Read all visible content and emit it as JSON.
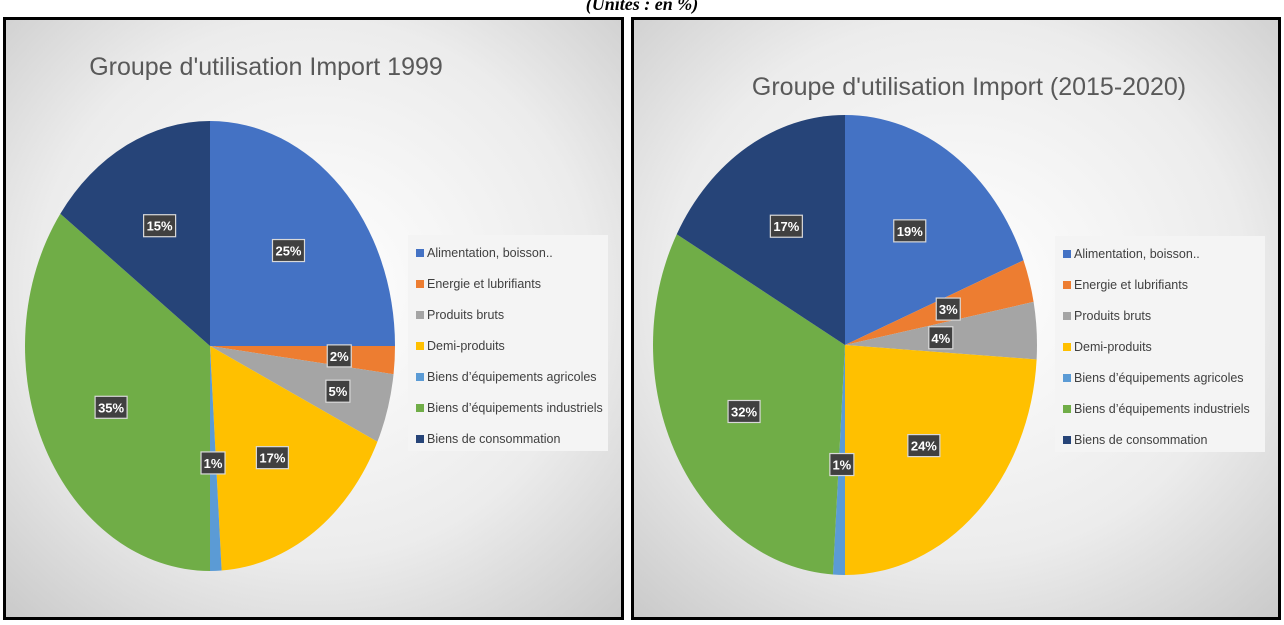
{
  "caption": "(Unités : en %)",
  "legend_labels": [
    "Alimentation, boisson..",
    "Energie et lubrifiants",
    "Produits bruts",
    "Demi-produits",
    "Biens d’équipements agricoles",
    "Biens d’équipements industriels",
    "Biens de consommation"
  ],
  "colors": [
    "#4472C4",
    "#ED7D31",
    "#A5A5A5",
    "#FFC000",
    "#5B9BD5",
    "#70AD47",
    "#264478"
  ],
  "chart_data": [
    {
      "type": "pie",
      "title": "Groupe d'utilisation Import 1999",
      "slices": [
        {
          "label": "Alimentation, boisson..",
          "value": 25,
          "display": "25%"
        },
        {
          "label": "Energie et lubrifiants",
          "value": 2,
          "display": "2%"
        },
        {
          "label": "Produits bruts",
          "value": 5,
          "display": "5%"
        },
        {
          "label": "Demi-produits",
          "value": 17,
          "display": "17%"
        },
        {
          "label": "Biens d’équipements agricoles",
          "value": 1,
          "display": "1%"
        },
        {
          "label": "Biens d’équipements industriels",
          "value": 35,
          "display": "35%"
        },
        {
          "label": "Biens de consommation",
          "value": 15,
          "display": "15%"
        }
      ],
      "legend_position": "right"
    },
    {
      "type": "pie",
      "title": "Groupe d'utilisation Import (2015-2020)",
      "slices": [
        {
          "label": "Alimentation, boisson..",
          "value": 19,
          "display": "19%"
        },
        {
          "label": "Energie et lubrifiants",
          "value": 3,
          "display": "3%"
        },
        {
          "label": "Produits bruts",
          "value": 4,
          "display": "4%"
        },
        {
          "label": "Demi-produits",
          "value": 24,
          "display": "24%"
        },
        {
          "label": "Biens d’équipements agricoles",
          "value": 1,
          "display": "1%"
        },
        {
          "label": "Biens d’équipements industriels",
          "value": 32,
          "display": "32%"
        },
        {
          "label": "Biens de consommation",
          "value": 17,
          "display": "17%"
        }
      ],
      "legend_position": "right"
    }
  ]
}
